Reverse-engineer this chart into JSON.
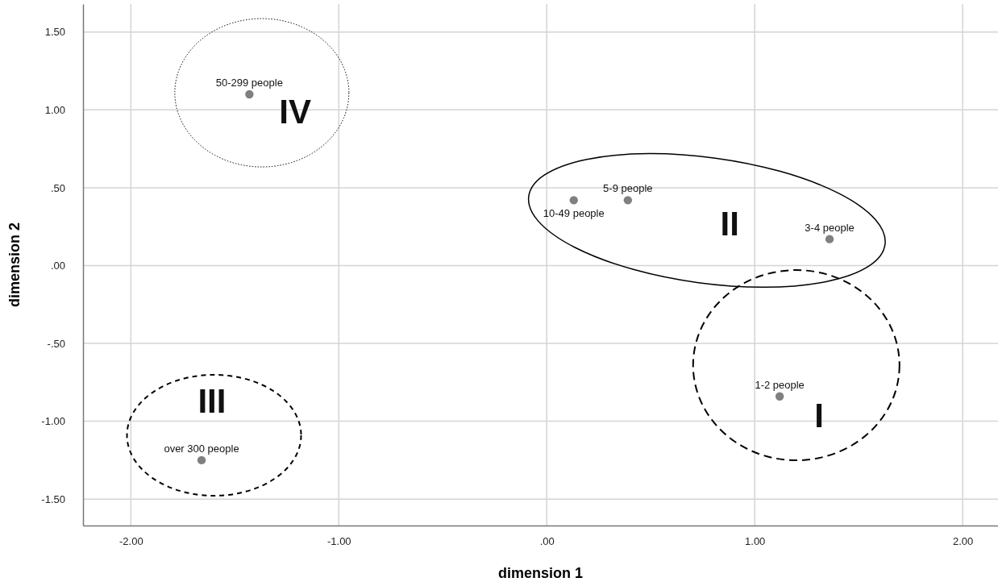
{
  "chart_data": {
    "type": "scatter",
    "xlabel": "dimension 1",
    "ylabel": "dimension 2",
    "xlim": [
      -2.23,
      2.17
    ],
    "ylim": [
      -1.67,
      1.68
    ],
    "xticks": [
      {
        "value": -2,
        "label": "-2.00"
      },
      {
        "value": -1,
        "label": "-1.00"
      },
      {
        "value": 0,
        "label": ".00"
      },
      {
        "value": 1,
        "label": "1.00"
      },
      {
        "value": 2,
        "label": "2.00"
      }
    ],
    "yticks": [
      {
        "value": -1.5,
        "label": "-1.50"
      },
      {
        "value": -1,
        "label": "-1.00"
      },
      {
        "value": -0.5,
        "label": "-.50"
      },
      {
        "value": 0,
        "label": ".00"
      },
      {
        "value": 0.5,
        "label": ".50"
      },
      {
        "value": 1,
        "label": "1.00"
      },
      {
        "value": 1.5,
        "label": "1.50"
      }
    ],
    "grid": true,
    "marker": "circle",
    "series": [
      {
        "color": "#808080",
        "x": [
          -1.43,
          0.39,
          0.13,
          1.36,
          1.12,
          -1.66
        ],
        "values": [
          1.1,
          0.42,
          0.42,
          0.17,
          -0.84,
          -1.25
        ],
        "value_labels": [
          "50-299 people",
          "5-9 people",
          "10-49 people",
          "3-4 people",
          "1-2 people",
          "over 300 people"
        ]
      }
    ],
    "annotations": [
      "IV",
      "II",
      "III",
      "I"
    ]
  }
}
